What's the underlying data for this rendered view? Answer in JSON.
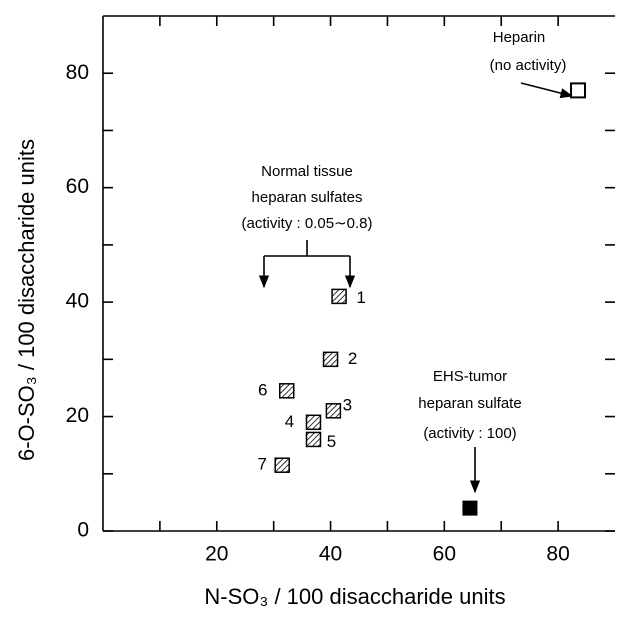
{
  "chart_data": {
    "type": "scatter",
    "xlabel": "N-SO₃ / 100  disaccharide  units",
    "ylabel": "6-O-SO₃ / 100  disaccharide  units",
    "xlim": [
      0,
      90
    ],
    "ylim": [
      0,
      90
    ],
    "xticks": [
      20,
      40,
      60,
      80
    ],
    "yticks": [
      0,
      20,
      40,
      60,
      80
    ],
    "xminorticks": [
      10,
      30,
      50,
      70
    ],
    "yminorticks": [
      10,
      30,
      50,
      70
    ],
    "series": [
      {
        "marker": "hatched",
        "color": "#000000",
        "x": [
          41.5,
          40,
          40.5,
          37,
          37,
          32.3,
          31.5
        ],
        "values": [
          41,
          30,
          21,
          19,
          16,
          24.5,
          11.5
        ],
        "point_labels": [
          "1",
          "2",
          "3",
          "4",
          "5",
          "6",
          "7"
        ]
      },
      {
        "marker": "open",
        "color": "#000000",
        "x": [
          83.5
        ],
        "values": [
          77
        ]
      },
      {
        "marker": "filled",
        "color": "#000000",
        "x": [
          64.5
        ],
        "values": [
          4
        ]
      }
    ],
    "annotations": [
      {
        "lines": [
          "Heparin",
          "(no activity)"
        ]
      },
      {
        "lines": [
          "Normal  tissue",
          "heparan  sulfates",
          "(activity : 0.05∼0.8)"
        ]
      },
      {
        "lines": [
          "EHS-tumor",
          "heparan sulfate",
          "(activity : 100)"
        ]
      }
    ]
  }
}
